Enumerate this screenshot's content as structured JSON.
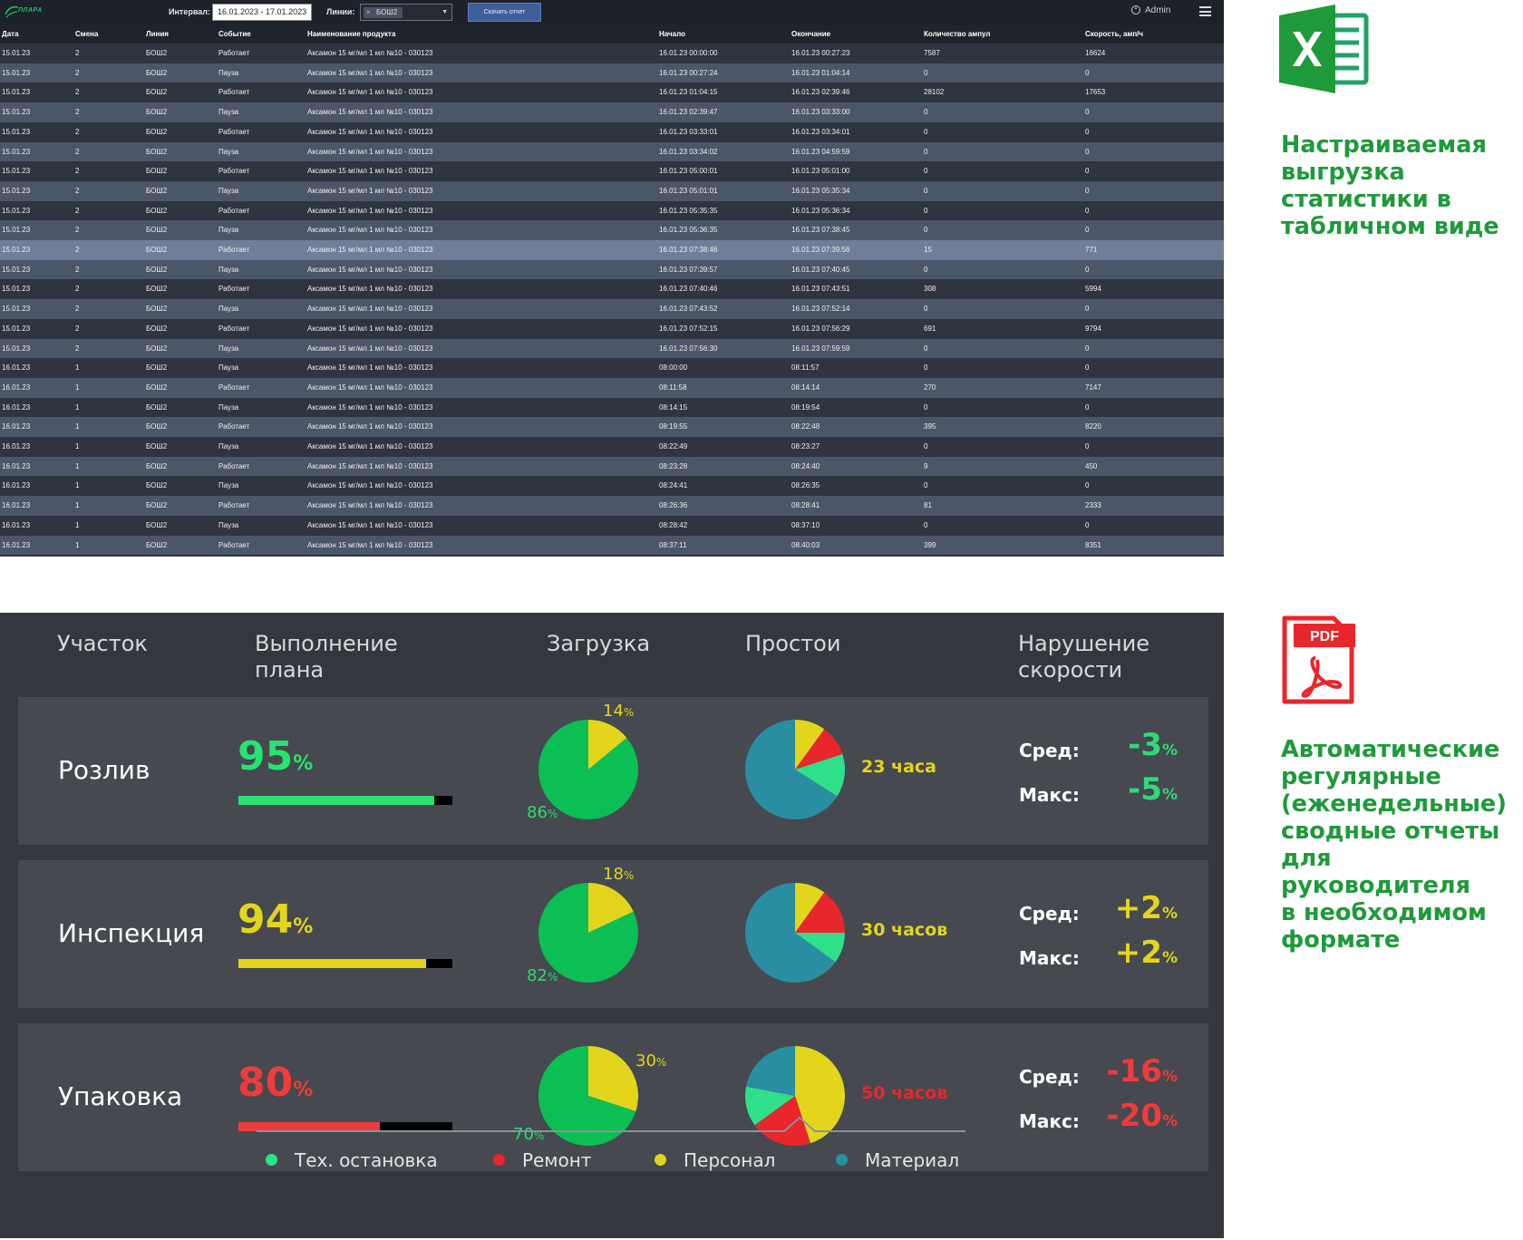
{
  "app": {
    "logo_text": "ПЛАРА",
    "interval_label": "Интервал:",
    "interval_value": "16.01.2023 - 17.01.2023",
    "lines_label": "Линии:",
    "lines_selected": "БОШ2",
    "download_label": "Скачать отчет",
    "user_name": "Admin"
  },
  "table": {
    "columns": [
      "Дата",
      "Смена",
      "Линия",
      "Событие",
      "Наименование продукта",
      "Начало",
      "Окончание",
      "Количество ампул",
      "Скорость, амп/ч"
    ],
    "rows": [
      [
        "15.01.23",
        "2",
        "БОШ2",
        "Работает",
        "Аксамон 15 мг/мл 1 мл №10 - 030123",
        "16.01.23 00:00:00",
        "16.01.23 00:27:23",
        "7587",
        "16624"
      ],
      [
        "15.01.23",
        "2",
        "БОШ2",
        "Пауза",
        "Аксамон 15 мг/мл 1 мл №10 - 030123",
        "16.01.23 00:27:24",
        "16.01.23 01:04:14",
        "0",
        "0"
      ],
      [
        "15.01.23",
        "2",
        "БОШ2",
        "Работает",
        "Аксамон 15 мг/мл 1 мл №10 - 030123",
        "16.01.23 01:04:15",
        "16.01.23 02:39:46",
        "28102",
        "17653"
      ],
      [
        "15.01.23",
        "2",
        "БОШ2",
        "Пауза",
        "Аксамон 15 мг/мл 1 мл №10 - 030123",
        "16.01.23 02:39:47",
        "16.01.23 03:33:00",
        "0",
        "0"
      ],
      [
        "15.01.23",
        "2",
        "БОШ2",
        "Работает",
        "Аксамон 15 мг/мл 1 мл №10 - 030123",
        "16.01.23 03:33:01",
        "16.01.23 03:34:01",
        "0",
        "0"
      ],
      [
        "15.01.23",
        "2",
        "БОШ2",
        "Пауза",
        "Аксамон 15 мг/мл 1 мл №10 - 030123",
        "16.01.23 03:34:02",
        "16.01.23 04:59:59",
        "0",
        "0"
      ],
      [
        "15.01.23",
        "2",
        "БОШ2",
        "Работает",
        "Аксамон 15 мг/мл 1 мл №10 - 030123",
        "16.01.23 05:00:01",
        "16.01.23 05:01:00",
        "0",
        "0"
      ],
      [
        "15.01.23",
        "2",
        "БОШ2",
        "Пауза",
        "Аксамон 15 мг/мл 1 мл №10 - 030123",
        "16.01.23 05:01:01",
        "16.01.23 05:35:34",
        "0",
        "0"
      ],
      [
        "15.01.23",
        "2",
        "БОШ2",
        "Работает",
        "Аксамон 15 мг/мл 1 мл №10 - 030123",
        "16.01.23 05:35:35",
        "16.01.23 05:36:34",
        "0",
        "0"
      ],
      [
        "15.01.23",
        "2",
        "БОШ2",
        "Пауза",
        "Аксамон 15 мг/мл 1 мл №10 - 030123",
        "16.01.23 05:36:35",
        "16.01.23 07:38:45",
        "0",
        "0"
      ],
      [
        "15.01.23",
        "2",
        "БОШ2",
        "Работает",
        "Аксамон 15 мг/мл 1 мл №10 - 030123",
        "16.01.23 07:38:46",
        "16.01.23 07:39:56",
        "15",
        "771"
      ],
      [
        "15.01.23",
        "2",
        "БОШ2",
        "Пауза",
        "Аксамон 15 мг/мл 1 мл №10 - 030123",
        "16.01.23 07:39:57",
        "16.01.23 07:40:45",
        "0",
        "0"
      ],
      [
        "15.01.23",
        "2",
        "БОШ2",
        "Работает",
        "Аксамон 15 мг/мл 1 мл №10 - 030123",
        "16.01.23 07:40:46",
        "16.01.23 07:43:51",
        "308",
        "5994"
      ],
      [
        "15.01.23",
        "2",
        "БОШ2",
        "Пауза",
        "Аксамон 15 мг/мл 1 мл №10 - 030123",
        "16.01.23 07:43:52",
        "16.01.23 07:52:14",
        "0",
        "0"
      ],
      [
        "15.01.23",
        "2",
        "БОШ2",
        "Работает",
        "Аксамон 15 мг/мл 1 мл №10 - 030123",
        "16.01.23 07:52:15",
        "16.01.23 07:56:29",
        "691",
        "9794"
      ],
      [
        "15.01.23",
        "2",
        "БОШ2",
        "Пауза",
        "Аксамон 15 мг/мл 1 мл №10 - 030123",
        "16.01.23 07:56:30",
        "16.01.23 07:59:59",
        "0",
        "0"
      ],
      [
        "16.01.23",
        "1",
        "БОШ2",
        "Пауза",
        "Аксамон 15 мг/мл 1 мл №10 - 030123",
        "08:00:00",
        "08:11:57",
        "0",
        "0"
      ],
      [
        "16.01.23",
        "1",
        "БОШ2",
        "Работает",
        "Аксамон 15 мг/мл 1 мл №10 - 030123",
        "08:11:58",
        "08:14:14",
        "270",
        "7147"
      ],
      [
        "16.01.23",
        "1",
        "БОШ2",
        "Пауза",
        "Аксамон 15 мг/мл 1 мл №10 - 030123",
        "08:14:15",
        "08:19:54",
        "0",
        "0"
      ],
      [
        "16.01.23",
        "1",
        "БОШ2",
        "Работает",
        "Аксамон 15 мг/мл 1 мл №10 - 030123",
        "08:19:55",
        "08:22:48",
        "395",
        "8220"
      ],
      [
        "16.01.23",
        "1",
        "БОШ2",
        "Пауза",
        "Аксамон 15 мг/мл 1 мл №10 - 030123",
        "08:22:49",
        "08:23:27",
        "0",
        "0"
      ],
      [
        "16.01.23",
        "1",
        "БОШ2",
        "Работает",
        "Аксамон 15 мг/мл 1 мл №10 - 030123",
        "08:23:28",
        "08:24:40",
        "9",
        "450"
      ],
      [
        "16.01.23",
        "1",
        "БОШ2",
        "Пауза",
        "Аксамон 15 мг/мл 1 мл №10 - 030123",
        "08:24:41",
        "08:26:35",
        "0",
        "0"
      ],
      [
        "16.01.23",
        "1",
        "БОШ2",
        "Работает",
        "Аксамон 15 мг/мл 1 мл №10 - 030123",
        "08:26:36",
        "08:28:41",
        "81",
        "2333"
      ],
      [
        "16.01.23",
        "1",
        "БОШ2",
        "Пауза",
        "Аксамон 15 мг/мл 1 мл №10 - 030123",
        "08:28:42",
        "08:37:10",
        "0",
        "0"
      ],
      [
        "16.01.23",
        "1",
        "БОШ2",
        "Работает",
        "Аксамон 15 мг/мл 1 мл №10 - 030123",
        "08:37:11",
        "08:40:03",
        "399",
        "8351"
      ]
    ],
    "highlighted_row": 10
  },
  "report": {
    "headers": {
      "section": "Участок",
      "plan_line1": "Выполнение",
      "plan_line2": "плана",
      "load": "Загрузка",
      "downtime": "Простои",
      "speed_line1": "Нарушение",
      "speed_line2": "скорости"
    },
    "avg_label": "Сред:",
    "max_label": "Макс:",
    "pct_unit": "%",
    "sections": [
      {
        "name": "Розлив",
        "plan_value": "95",
        "plan_fraction": 0.915,
        "plan_color": "#27e36f",
        "load_work": "86",
        "load_idle": "14",
        "downtime_hours": "23 часа",
        "downtime_shares": {
          "personnel": 0.1,
          "repair": 0.1,
          "tech_stop": 0.14,
          "material": 0.66
        },
        "speed_avg": "-3",
        "speed_max": "-5",
        "speed_color": "#2fd97a"
      },
      {
        "name": "Инспекция",
        "plan_value": "94",
        "plan_fraction": 0.875,
        "plan_color": "#e2d51c",
        "load_work": "82",
        "load_idle": "18",
        "downtime_hours": "30 часов",
        "downtime_shares": {
          "personnel": 0.1,
          "repair": 0.15,
          "tech_stop": 0.1,
          "material": 0.65
        },
        "speed_avg": "+2",
        "speed_max": "+2",
        "speed_color": "#e2d51c"
      },
      {
        "name": "Упаковка",
        "plan_value": "80",
        "plan_fraction": 0.66,
        "plan_color": "#ef3b3b",
        "load_work": "70",
        "load_idle": "30",
        "downtime_hours": "50 часов",
        "downtime_shares": {
          "personnel": 0.45,
          "repair": 0.2,
          "tech_stop": 0.13,
          "material": 0.22
        },
        "speed_avg": "-16",
        "speed_max": "-20",
        "speed_color": "#ef3b3b"
      }
    ],
    "legend": [
      {
        "label": "Тех. остановка",
        "color": "#2fe08a"
      },
      {
        "label": "Ремонт",
        "color": "#e8262b"
      },
      {
        "label": "Персонал",
        "color": "#e2d51c"
      },
      {
        "label": "Материал",
        "color": "#2a8ea3"
      }
    ],
    "colors": {
      "work": "#0bbf55",
      "idle": "#e2d51c",
      "text_green": "#2fd97a",
      "text_yellow": "#e2d51c"
    }
  },
  "side": {
    "excel_text": [
      "Настраиваемая",
      "выгрузка",
      "статистики в",
      "табличном виде"
    ],
    "pdf_badge": "PDF",
    "pdf_text": [
      "Автоматические",
      "регулярные",
      "(еженедельные)",
      "сводные отчеты",
      "для руководителя",
      "в необходимом",
      "формате"
    ]
  }
}
